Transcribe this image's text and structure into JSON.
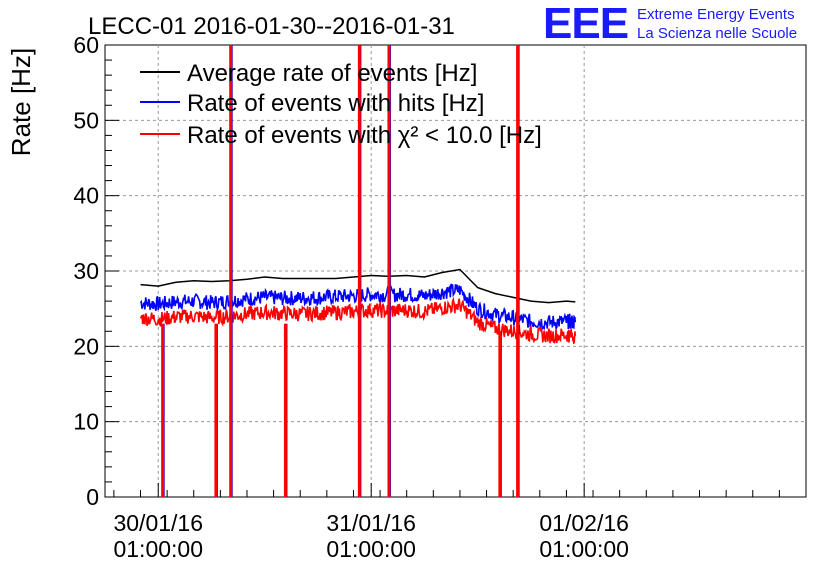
{
  "chart_data": {
    "type": "line",
    "title": "LECC-01 2016-01-30--2016-01-31",
    "ylabel": "Rate [Hz]",
    "xlabel": "",
    "ylim": [
      0,
      60
    ],
    "xlim": [
      "2016-01-29T19:00:00",
      "2016-02-02T02:00:00"
    ],
    "y_ticks": [
      0,
      10,
      20,
      30,
      40,
      50,
      60
    ],
    "y_tick_labels": [
      "0",
      "10",
      "20",
      "30",
      "40",
      "50",
      "60"
    ],
    "x_ticks": [
      {
        "value": "2016-01-30T01:00:00",
        "label_date": "30/01/16",
        "label_time": "01:00:00"
      },
      {
        "value": "2016-01-31T01:00:00",
        "label_date": "31/01/16",
        "label_time": "01:00:00"
      },
      {
        "value": "2016-02-01T01:00:00",
        "label_date": "01/02/16",
        "label_time": "01:00:00"
      }
    ],
    "grid": true,
    "legend_position": "top-left",
    "logo": {
      "mark": "EEE",
      "line1": "Extreme Energy Events",
      "line2": "La Scienza nelle Scuole",
      "color": "#1a1aff"
    },
    "series": [
      {
        "name": "Average rate of events [Hz]",
        "color": "#000000",
        "x": [
          "2016-01-29T23:00:00",
          "2016-01-30T01:00:00",
          "2016-01-30T03:00:00",
          "2016-01-30T05:00:00",
          "2016-01-30T07:00:00",
          "2016-01-30T09:00:00",
          "2016-01-30T11:00:00",
          "2016-01-30T13:00:00",
          "2016-01-30T15:00:00",
          "2016-01-30T17:00:00",
          "2016-01-30T19:00:00",
          "2016-01-30T21:00:00",
          "2016-01-30T23:00:00",
          "2016-01-31T01:00:00",
          "2016-01-31T03:00:00",
          "2016-01-31T05:00:00",
          "2016-01-31T07:00:00",
          "2016-01-31T09:00:00",
          "2016-01-31T11:00:00",
          "2016-01-31T13:00:00",
          "2016-01-31T15:00:00",
          "2016-01-31T17:00:00",
          "2016-01-31T19:00:00",
          "2016-01-31T21:00:00",
          "2016-01-31T23:00:00",
          "2016-02-01T00:00:00"
        ],
        "values": [
          28.2,
          28.0,
          28.5,
          28.7,
          28.6,
          28.7,
          28.9,
          29.2,
          29.0,
          29.0,
          29.0,
          29.0,
          29.2,
          29.4,
          29.3,
          29.4,
          29.2,
          29.8,
          30.2,
          27.8,
          27.0,
          26.5,
          26.0,
          25.8,
          26.0,
          25.9
        ]
      },
      {
        "name": "Rate of events with hits [Hz]",
        "color": "#0000ff",
        "x": [
          "2016-01-29T23:00:00",
          "2016-01-30T01:00:00",
          "2016-01-30T03:00:00",
          "2016-01-30T05:00:00",
          "2016-01-30T07:00:00",
          "2016-01-30T09:00:00",
          "2016-01-30T11:00:00",
          "2016-01-30T13:00:00",
          "2016-01-30T15:00:00",
          "2016-01-30T17:00:00",
          "2016-01-30T19:00:00",
          "2016-01-30T21:00:00",
          "2016-01-30T23:00:00",
          "2016-01-31T01:00:00",
          "2016-01-31T03:00:00",
          "2016-01-31T05:00:00",
          "2016-01-31T07:00:00",
          "2016-01-31T09:00:00",
          "2016-01-31T11:00:00",
          "2016-01-31T13:00:00",
          "2016-01-31T15:00:00",
          "2016-01-31T17:00:00",
          "2016-01-31T19:00:00",
          "2016-01-31T21:00:00",
          "2016-01-31T23:00:00",
          "2016-02-01T00:00:00"
        ],
        "values": [
          25.8,
          25.6,
          25.9,
          26.0,
          25.8,
          26.0,
          26.3,
          26.5,
          26.4,
          26.4,
          26.5,
          26.6,
          26.7,
          26.9,
          26.8,
          26.9,
          26.7,
          27.2,
          27.5,
          25.0,
          24.2,
          23.8,
          23.3,
          23.2,
          23.3,
          23.2
        ]
      },
      {
        "name": "Rate of events with χ² < 10.0 [Hz]",
        "color": "#ff0000",
        "x": [
          "2016-01-29T23:00:00",
          "2016-01-30T01:00:00",
          "2016-01-30T03:00:00",
          "2016-01-30T05:00:00",
          "2016-01-30T07:00:00",
          "2016-01-30T09:00:00",
          "2016-01-30T11:00:00",
          "2016-01-30T13:00:00",
          "2016-01-30T15:00:00",
          "2016-01-30T17:00:00",
          "2016-01-30T19:00:00",
          "2016-01-30T21:00:00",
          "2016-01-30T23:00:00",
          "2016-01-31T01:00:00",
          "2016-01-31T03:00:00",
          "2016-01-31T05:00:00",
          "2016-01-31T07:00:00",
          "2016-01-31T09:00:00",
          "2016-01-31T11:00:00",
          "2016-01-31T13:00:00",
          "2016-01-31T15:00:00",
          "2016-01-31T17:00:00",
          "2016-01-31T19:00:00",
          "2016-01-31T21:00:00",
          "2016-01-31T23:00:00",
          "2016-02-01T00:00:00"
        ],
        "values": [
          23.8,
          23.6,
          23.9,
          24.0,
          23.8,
          24.0,
          24.3,
          24.5,
          24.4,
          24.3,
          24.4,
          24.5,
          24.6,
          24.8,
          24.7,
          24.8,
          24.6,
          25.1,
          25.5,
          23.2,
          22.4,
          22.0,
          21.6,
          21.4,
          21.5,
          21.4
        ]
      }
    ],
    "spikes": [
      {
        "x": "2016-01-30T01:30:00",
        "min": 0,
        "max": 23
      },
      {
        "x": "2016-01-30T07:30:00",
        "min": 0,
        "max": 23
      },
      {
        "x": "2016-01-30T09:10:00",
        "min": 0,
        "max": 60
      },
      {
        "x": "2016-01-30T15:20:00",
        "min": 0,
        "max": 23
      },
      {
        "x": "2016-01-30T23:40:00",
        "min": 0,
        "max": 60
      },
      {
        "x": "2016-01-31T03:00:00",
        "min": 0,
        "max": 60
      },
      {
        "x": "2016-01-31T15:30:00",
        "min": 0,
        "max": 22
      },
      {
        "x": "2016-01-31T17:30:00",
        "min": 0,
        "max": 60
      }
    ]
  }
}
